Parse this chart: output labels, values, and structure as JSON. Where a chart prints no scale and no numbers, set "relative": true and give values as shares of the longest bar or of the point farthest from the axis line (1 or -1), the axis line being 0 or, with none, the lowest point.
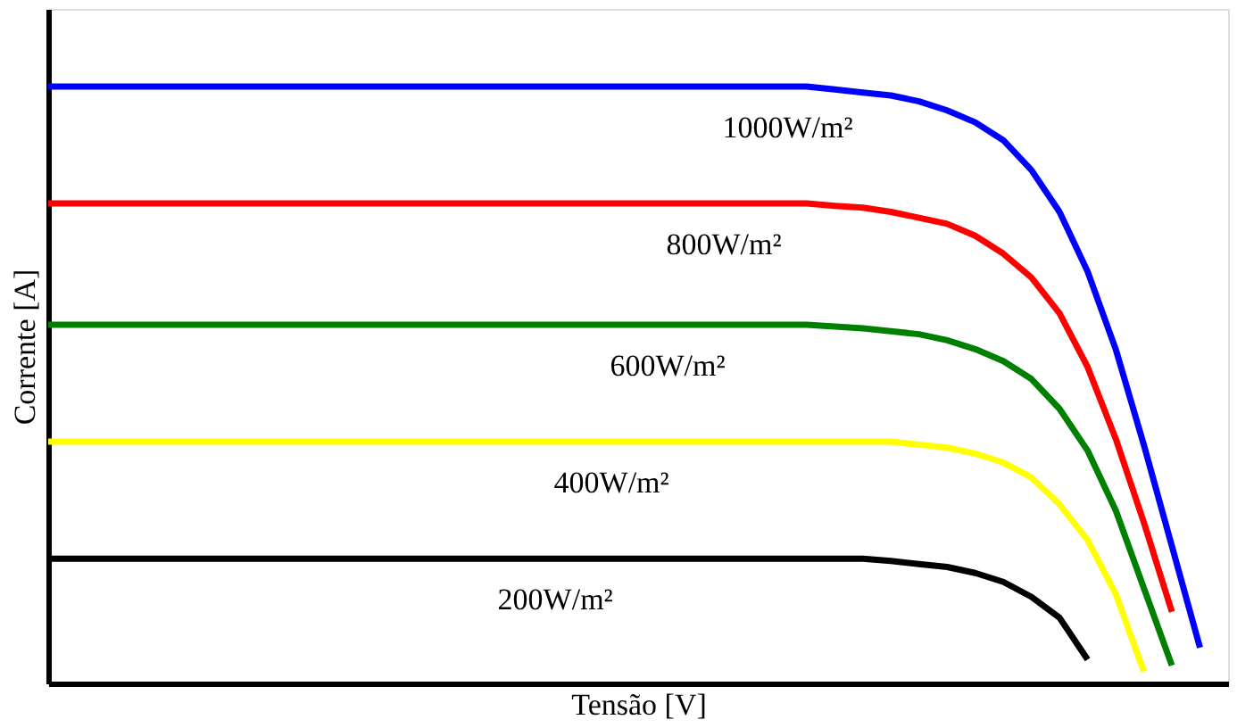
{
  "chart_data": {
    "type": "line",
    "relative": true,
    "xlabel": "Tensão [V]",
    "ylabel": "Corrente [A]",
    "tick_labels": false,
    "grid": false,
    "legend": false,
    "marker": "none",
    "line_style": "solid",
    "categories": [
      null,
      null,
      null,
      null,
      null,
      null,
      null,
      null,
      null,
      null,
      null,
      null,
      null,
      null,
      null,
      null,
      null,
      null,
      null,
      null,
      null,
      null,
      null,
      null,
      null,
      null,
      null,
      null,
      null,
      null,
      null,
      null,
      null,
      null,
      null,
      null,
      null,
      null,
      null,
      null,
      null,
      null,
      null
    ],
    "series": [
      {
        "name": "1000W/m²",
        "color": "#0000ff",
        "values": [
          1,
          1,
          1,
          1,
          1,
          1,
          1,
          1,
          1,
          1,
          1,
          1,
          1,
          1,
          1,
          1,
          1,
          1,
          1,
          1,
          1,
          1,
          1,
          1,
          1,
          1,
          1,
          1,
          0.995,
          0.99,
          0.985,
          0.975,
          0.96,
          0.94,
          0.91,
          0.86,
          0.79,
          0.69,
          0.56,
          0.4,
          0.23,
          0.06,
          null
        ]
      },
      {
        "name": "800W/m²",
        "color": "#ff0000",
        "values": [
          0.804,
          0.804,
          0.804,
          0.804,
          0.804,
          0.804,
          0.804,
          0.804,
          0.804,
          0.804,
          0.804,
          0.804,
          0.804,
          0.804,
          0.804,
          0.804,
          0.804,
          0.804,
          0.804,
          0.804,
          0.804,
          0.804,
          0.804,
          0.804,
          0.804,
          0.804,
          0.804,
          0.804,
          0.8,
          0.797,
          0.79,
          0.78,
          0.77,
          0.75,
          0.72,
          0.68,
          0.62,
          0.53,
          0.41,
          0.27,
          0.12,
          null,
          null
        ]
      },
      {
        "name": "600W/m²",
        "color": "#008000",
        "values": [
          0.601,
          0.601,
          0.601,
          0.601,
          0.601,
          0.601,
          0.601,
          0.601,
          0.601,
          0.601,
          0.601,
          0.601,
          0.601,
          0.601,
          0.601,
          0.601,
          0.601,
          0.601,
          0.601,
          0.601,
          0.601,
          0.601,
          0.601,
          0.601,
          0.601,
          0.601,
          0.601,
          0.601,
          0.598,
          0.595,
          0.59,
          0.585,
          0.575,
          0.56,
          0.54,
          0.51,
          0.46,
          0.39,
          0.29,
          0.16,
          0.03,
          null,
          null
        ]
      },
      {
        "name": "400W/m²",
        "color": "#ffff00",
        "values": [
          0.405,
          0.405,
          0.405,
          0.405,
          0.405,
          0.405,
          0.405,
          0.405,
          0.405,
          0.405,
          0.405,
          0.405,
          0.405,
          0.405,
          0.405,
          0.405,
          0.405,
          0.405,
          0.405,
          0.405,
          0.405,
          0.405,
          0.405,
          0.405,
          0.405,
          0.405,
          0.405,
          0.405,
          0.405,
          0.405,
          0.405,
          0.4,
          0.395,
          0.385,
          0.37,
          0.345,
          0.3,
          0.24,
          0.15,
          0.02,
          null,
          null,
          null
        ]
      },
      {
        "name": "200W/m²",
        "color": "#000000",
        "values": [
          0.209,
          0.209,
          0.209,
          0.209,
          0.209,
          0.209,
          0.209,
          0.209,
          0.209,
          0.209,
          0.209,
          0.209,
          0.209,
          0.209,
          0.209,
          0.209,
          0.209,
          0.209,
          0.209,
          0.209,
          0.209,
          0.209,
          0.209,
          0.209,
          0.209,
          0.209,
          0.209,
          0.209,
          0.209,
          0.209,
          0.205,
          0.2,
          0.195,
          0.185,
          0.17,
          0.145,
          0.11,
          0.04,
          null,
          null,
          null,
          null,
          null
        ]
      }
    ]
  }
}
